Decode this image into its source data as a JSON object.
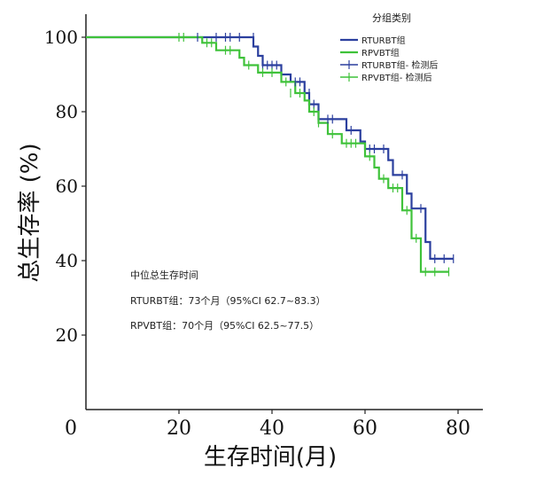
{
  "chart_data": {
    "type": "line",
    "title": "",
    "xlabel": "生存时间(月)",
    "ylabel": "总生存率 (%)",
    "xlim": [
      0,
      85
    ],
    "ylim": [
      0,
      105
    ],
    "x_ticks": [
      "0",
      "20",
      "40",
      "60",
      "80"
    ],
    "y_ticks": [
      "20",
      "40",
      "60",
      "80",
      "100"
    ],
    "grid": false,
    "legend_title": "分组类别",
    "legend_position": "top-right",
    "legend": [
      "RTURBT组",
      "RPVBT组",
      "RTURBT组- 检测后",
      "RPVBT组- 检测后"
    ],
    "series": [
      {
        "name": "RTURBT组",
        "color": "#2b3f9e",
        "steps": [
          [
            0,
            100
          ],
          [
            35,
            100
          ],
          [
            36,
            97.5
          ],
          [
            37,
            95
          ],
          [
            38,
            92.5
          ],
          [
            42,
            90
          ],
          [
            44,
            88
          ],
          [
            47,
            85
          ],
          [
            48,
            82
          ],
          [
            50,
            78
          ],
          [
            56,
            75
          ],
          [
            59,
            72
          ],
          [
            60,
            70
          ],
          [
            65,
            67
          ],
          [
            66,
            63
          ],
          [
            69,
            58
          ],
          [
            70,
            54
          ],
          [
            73,
            45
          ],
          [
            74,
            40.5
          ],
          [
            79,
            40.5
          ]
        ],
        "censored": [
          [
            24,
            100
          ],
          [
            28,
            100
          ],
          [
            30,
            100
          ],
          [
            31,
            100
          ],
          [
            33,
            100
          ],
          [
            36,
            100
          ],
          [
            38,
            92.5
          ],
          [
            39,
            92.5
          ],
          [
            40,
            92.5
          ],
          [
            41,
            92.5
          ],
          [
            45,
            88
          ],
          [
            46,
            88
          ],
          [
            48,
            85
          ],
          [
            49,
            82
          ],
          [
            52,
            78
          ],
          [
            53,
            78
          ],
          [
            57,
            75
          ],
          [
            61,
            70
          ],
          [
            62,
            70
          ],
          [
            64,
            70
          ],
          [
            68,
            63
          ],
          [
            72,
            54
          ],
          [
            75,
            40.5
          ],
          [
            77,
            40.5
          ],
          [
            79,
            40.5
          ]
        ]
      },
      {
        "name": "RPVBT组",
        "color": "#3fc23a",
        "steps": [
          [
            0,
            100
          ],
          [
            22,
            100
          ],
          [
            25,
            98.5
          ],
          [
            28,
            96.5
          ],
          [
            33,
            94.5
          ],
          [
            34,
            92.5
          ],
          [
            37,
            90.5
          ],
          [
            42,
            88
          ],
          [
            45,
            85
          ],
          [
            47,
            83
          ],
          [
            48,
            80
          ],
          [
            50,
            77
          ],
          [
            52,
            74
          ],
          [
            55,
            71.5
          ],
          [
            60,
            68
          ],
          [
            62,
            65
          ],
          [
            63,
            62
          ],
          [
            65,
            59.5
          ],
          [
            68,
            53.5
          ],
          [
            70,
            46
          ],
          [
            72,
            37
          ]
        ],
        "censored": [
          [
            20,
            100
          ],
          [
            21,
            100
          ],
          [
            26,
            98.5
          ],
          [
            27,
            98.5
          ],
          [
            30,
            96.5
          ],
          [
            31,
            96.5
          ],
          [
            35,
            92.5
          ],
          [
            38,
            90.5
          ],
          [
            40,
            90.5
          ],
          [
            43,
            88
          ],
          [
            44,
            85
          ],
          [
            46,
            85
          ],
          [
            49,
            80
          ],
          [
            50,
            77
          ],
          [
            53,
            74
          ],
          [
            56,
            71.5
          ],
          [
            57,
            71.5
          ],
          [
            58,
            71.5
          ],
          [
            61,
            68
          ],
          [
            64,
            62
          ],
          [
            66,
            59.5
          ],
          [
            67,
            59.5
          ],
          [
            69,
            53.5
          ],
          [
            71,
            46
          ],
          [
            73,
            37
          ],
          [
            75,
            37
          ],
          [
            78,
            37
          ]
        ]
      }
    ],
    "annotation": {
      "title": "中位总生存时间",
      "lines": [
        "RTURBT组：73个月（95%CI 62.7~83.3）",
        "RPVBT组：70个月（95%CI 62.5~77.5）"
      ]
    }
  }
}
